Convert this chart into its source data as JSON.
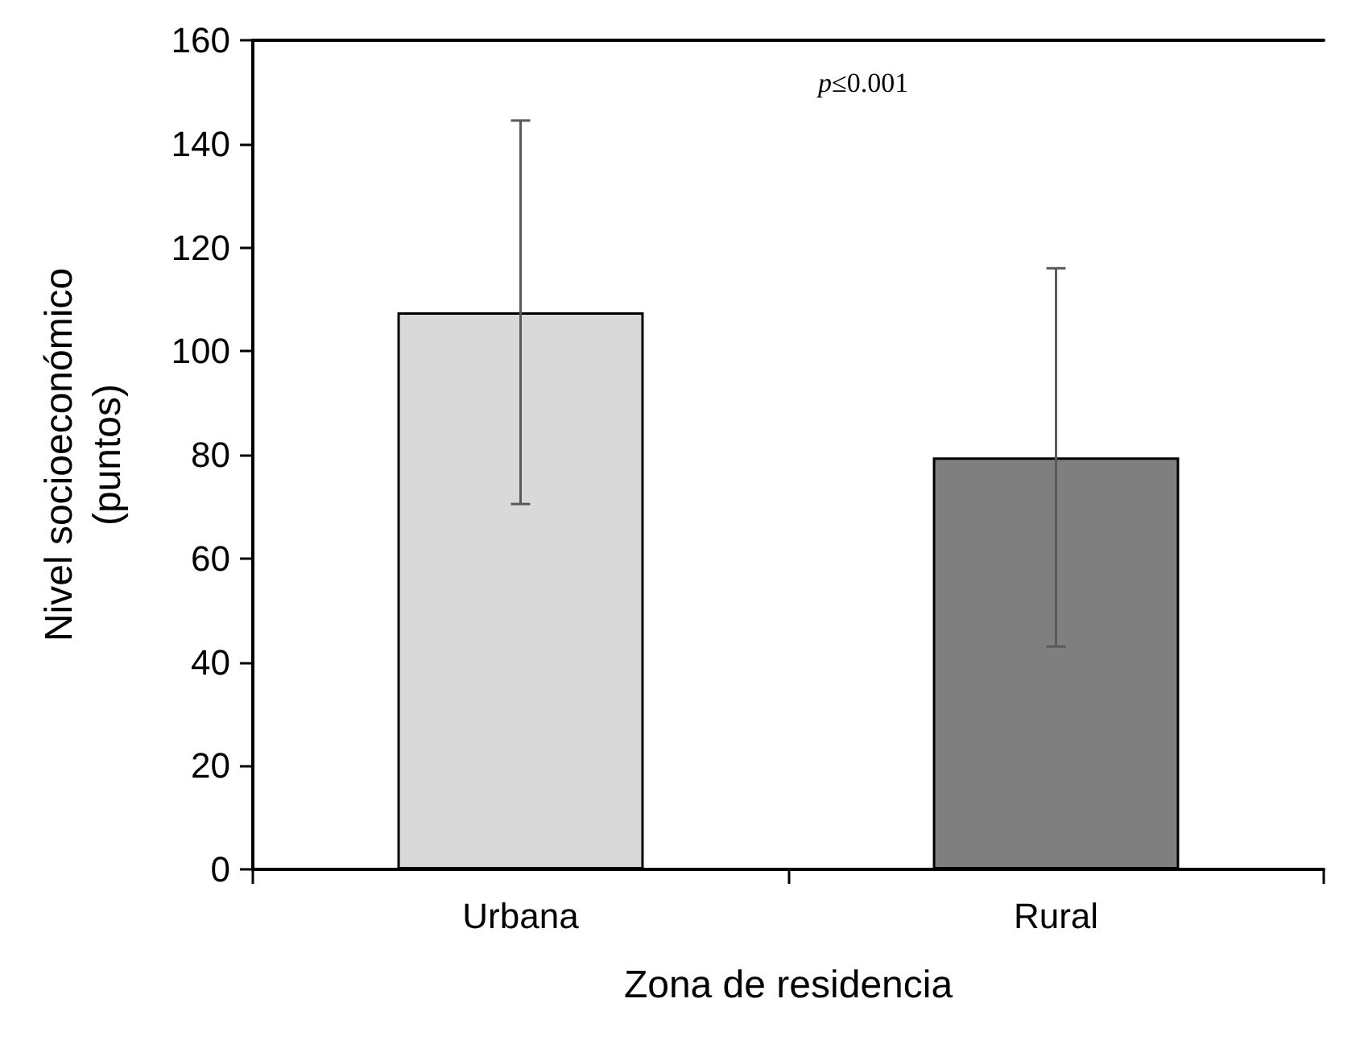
{
  "chart_data": {
    "type": "bar",
    "categories": [
      "Urbana",
      "Rural"
    ],
    "values": [
      107.5,
      79.5
    ],
    "colors": [
      "#d9d9d9",
      "#7f7f7f"
    ],
    "errors": [
      37,
      36.5
    ],
    "xlabel": "Zona de residencia",
    "ylabel": "Nivel socioeconómico\n(puntos)",
    "ylim": [
      0,
      160
    ],
    "yticks": [
      0,
      20,
      40,
      60,
      80,
      100,
      120,
      140,
      160
    ],
    "annotations": [
      "p≤0.001"
    ],
    "grid": false
  }
}
